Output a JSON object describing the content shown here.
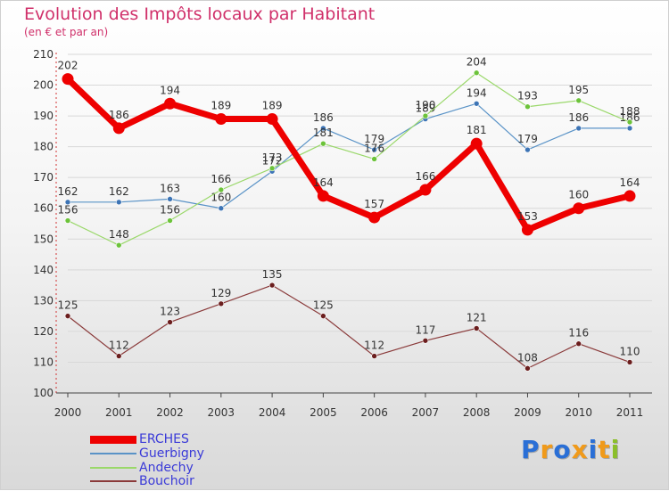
{
  "title": "Evolution des Impôts locaux par Habitant",
  "subtitle": "(en € et par an)",
  "logo": {
    "text": "Proxiti",
    "colors": [
      "#2a6fd6",
      "#f09a1a",
      "#2a6fd6",
      "#f09a1a",
      "#2a6fd6",
      "#f09a1a",
      "#8bbf2a"
    ]
  },
  "chart_data": {
    "type": "line",
    "title": "Evolution des Impôts locaux par Habitant",
    "subtitle": "(en € et par an)",
    "xlabel": "",
    "ylabel": "",
    "categories": [
      "2000",
      "2001",
      "2002",
      "2003",
      "2004",
      "2005",
      "2006",
      "2007",
      "2008",
      "2009",
      "2010",
      "2011"
    ],
    "ylim": [
      100,
      210
    ],
    "yticks": [
      "100",
      "110",
      "120",
      "130",
      "140",
      "150",
      "160",
      "170",
      "180",
      "190",
      "200",
      "210"
    ],
    "grid": true,
    "legend_position": "bottom-left",
    "series": [
      {
        "name": "Guerbigny",
        "color": "#5a93c7",
        "width": 1.2,
        "marker": "#3d74b5",
        "values": [
          162,
          162,
          163,
          160,
          172,
          186,
          179,
          189,
          194,
          179,
          186,
          186
        ],
        "labels": [
          "162",
          "162",
          "163",
          "160",
          "172",
          "186",
          "179",
          "189",
          "194",
          "179",
          "186",
          "186"
        ]
      },
      {
        "name": "Andechy",
        "color": "#9ad86a",
        "width": 1.2,
        "marker": "#6cc33a",
        "values": [
          156,
          148,
          156,
          166,
          173,
          181,
          176,
          190,
          204,
          193,
          195,
          188
        ],
        "labels": [
          "156",
          "148",
          "156",
          "166",
          "173",
          "181",
          "176",
          "190",
          "204",
          "193",
          "195",
          "188"
        ]
      },
      {
        "name": "Bouchoir",
        "color": "#8a3a3a",
        "width": 1.2,
        "marker": "#6b1e1e",
        "values": [
          125,
          112,
          123,
          129,
          135,
          125,
          112,
          117,
          121,
          108,
          116,
          110
        ],
        "labels": [
          "125",
          "112",
          "123",
          "129",
          "135",
          "125",
          "112",
          "117",
          "121",
          "108",
          "116",
          "110"
        ]
      },
      {
        "name": "ERCHES",
        "color": "#ee0000",
        "width": 7,
        "marker": "#ee0000",
        "values": [
          202,
          186,
          194,
          189,
          189,
          164,
          157,
          166,
          181,
          153,
          160,
          164
        ],
        "labels": [
          "202",
          "186",
          "194",
          "189",
          "189",
          "164",
          "157",
          "166",
          "181",
          "153",
          "160",
          "164"
        ]
      }
    ],
    "legend_order": [
      "ERCHES",
      "Guerbigny",
      "Andechy",
      "Bouchoir"
    ]
  }
}
